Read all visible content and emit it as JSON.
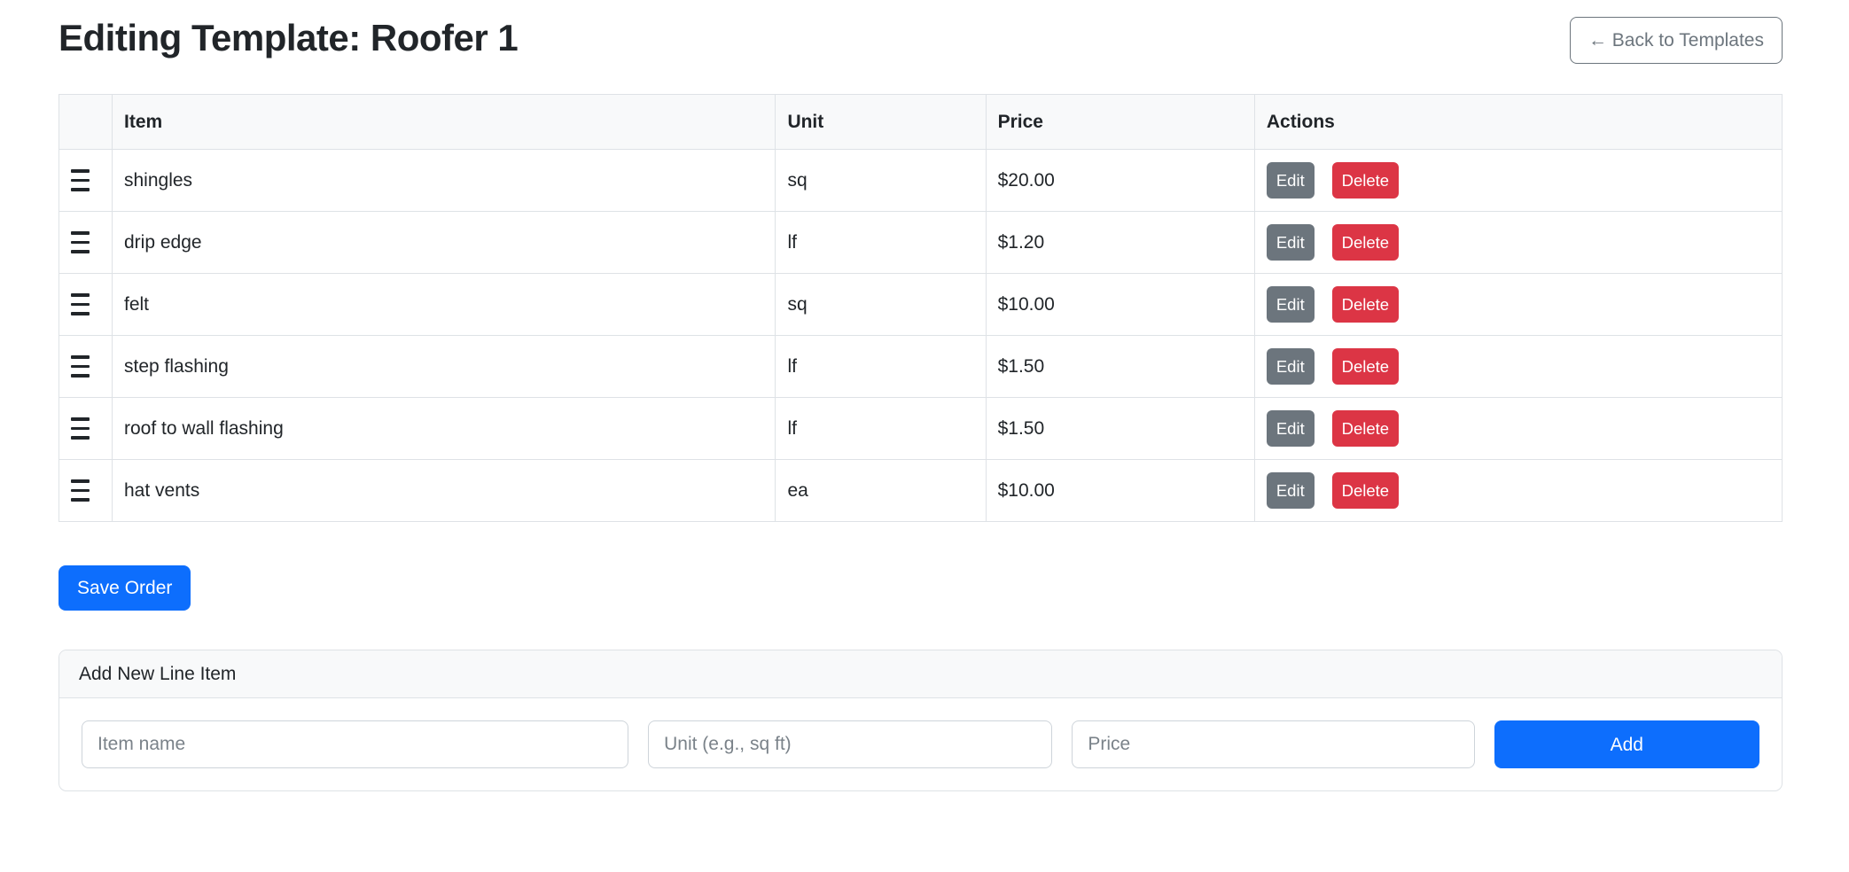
{
  "page": {
    "title": "Editing Template: Roofer 1"
  },
  "header": {
    "back_button_label": "← Back to Templates"
  },
  "table": {
    "columns": {
      "item": "Item",
      "unit": "Unit",
      "price": "Price",
      "actions": "Actions"
    },
    "rows": [
      {
        "item": "shingles",
        "unit": "sq",
        "price": "$20.00"
      },
      {
        "item": "drip edge",
        "unit": "lf",
        "price": "$1.20"
      },
      {
        "item": "felt",
        "unit": "sq",
        "price": "$10.00"
      },
      {
        "item": "step flashing",
        "unit": "lf",
        "price": "$1.50"
      },
      {
        "item": "roof to wall flashing",
        "unit": "lf",
        "price": "$1.50"
      },
      {
        "item": "hat vents",
        "unit": "ea",
        "price": "$10.00"
      }
    ],
    "row_actions": {
      "edit": "Edit",
      "delete": "Delete"
    },
    "drag_handle_icon": "hamburger-grip"
  },
  "buttons": {
    "save_order": "Save Order"
  },
  "add_form": {
    "card_title": "Add New Line Item",
    "item_placeholder": "Item name",
    "unit_placeholder": "Unit (e.g., sq ft)",
    "price_placeholder": "Price",
    "add_button": "Add"
  },
  "colors": {
    "primary_blue": "#0d6efd",
    "secondary_gray": "#6c757d",
    "danger_red": "#dc3545",
    "table_border": "#dee2e6",
    "header_bg": "#f8f9fa",
    "text": "#212529"
  }
}
